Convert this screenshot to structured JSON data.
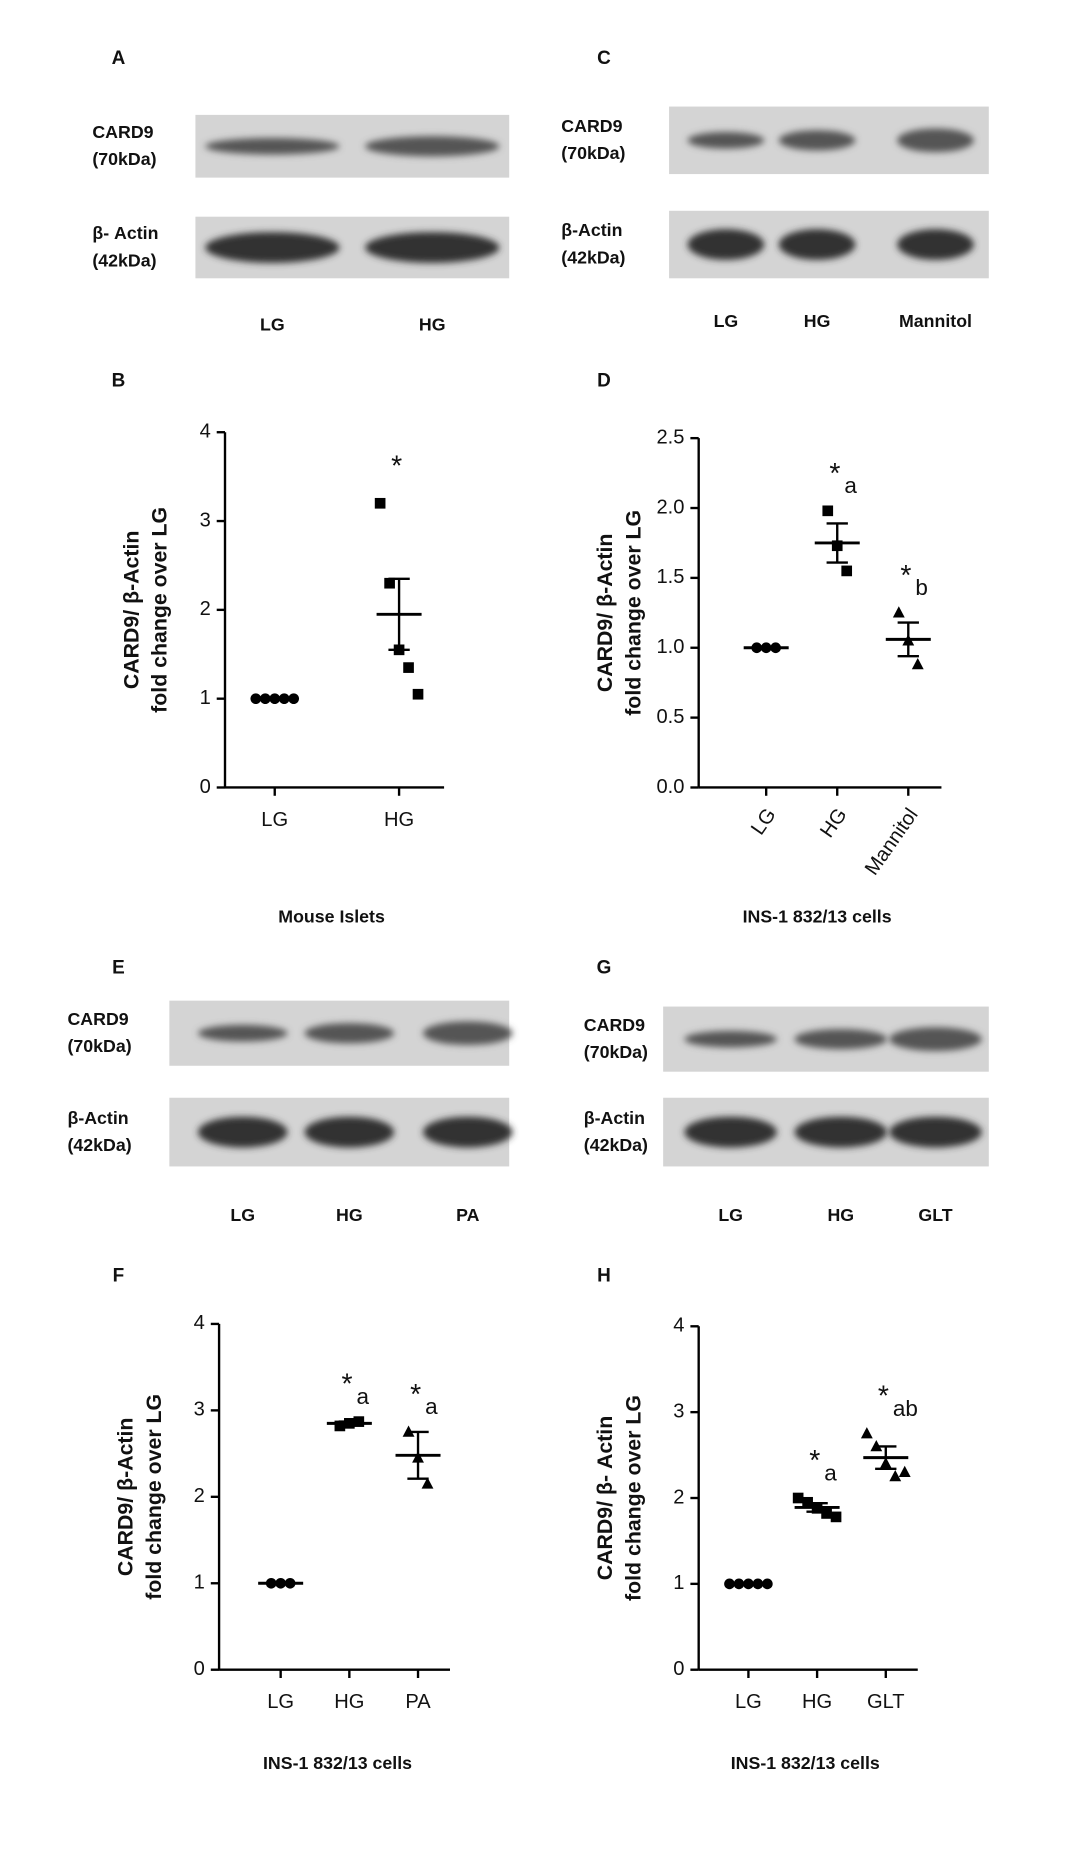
{
  "blots": [
    {
      "panel": "A",
      "rows": [
        {
          "protein": "CARD9",
          "size": "(70kDa)"
        },
        {
          "protein": "β- Actin",
          "size": "(42kDa)"
        }
      ],
      "lanes": [
        "LG",
        "HG"
      ]
    },
    {
      "panel": "C",
      "rows": [
        {
          "protein": "CARD9",
          "size": "(70kDa)"
        },
        {
          "protein": "β-Actin",
          "size": "(42kDa)"
        }
      ],
      "lanes": [
        "LG",
        "HG",
        "Mannitol"
      ]
    },
    {
      "panel": "E",
      "rows": [
        {
          "protein": "CARD9",
          "size": "(70kDa)"
        },
        {
          "protein": "β-Actin",
          "size": "(42kDa)"
        }
      ],
      "lanes": [
        "LG",
        "HG",
        "PA"
      ]
    },
    {
      "panel": "G",
      "rows": [
        {
          "protein": "CARD9",
          "size": "(70kDa)"
        },
        {
          "protein": "β-Actin",
          "size": "(42kDa)"
        }
      ],
      "lanes": [
        "LG",
        "HG",
        "GLT"
      ]
    }
  ],
  "chart_data": [
    {
      "type": "dot",
      "panel": "B",
      "ylabel": [
        "CARD9/ β-Actin",
        "fold change over LG"
      ],
      "caption": "Mouse Islets",
      "categories": [
        "LG",
        "HG"
      ],
      "markers": [
        "circle",
        "square"
      ],
      "points": [
        [
          1,
          1,
          1,
          1,
          1
        ],
        [
          3.2,
          2.3,
          1.55,
          1.35,
          1.05
        ]
      ],
      "means": [
        1,
        1.95
      ],
      "sems": [
        0,
        0.4
      ],
      "annotations": [
        null,
        {
          "text": "*"
        }
      ],
      "ylim": [
        0,
        4
      ],
      "yticks": [
        0,
        1,
        2,
        3,
        4
      ]
    },
    {
      "type": "dot",
      "panel": "D",
      "ylabel": [
        "CARD9/ β-Actin",
        "fold change over LG"
      ],
      "caption": "INS-1 832/13 cells",
      "categories": [
        "LG",
        "HG",
        "Mannitol"
      ],
      "markers": [
        "circle",
        "square",
        "triangle"
      ],
      "points": [
        [
          1,
          1,
          1
        ],
        [
          1.98,
          1.73,
          1.55
        ],
        [
          1.25,
          1.05,
          0.88
        ]
      ],
      "means": [
        1,
        1.75,
        1.06
      ],
      "sems": [
        0,
        0.14,
        0.12
      ],
      "annotations": [
        null,
        {
          "text": "*",
          "sub": "a"
        },
        {
          "text": "*",
          "sub": "b"
        }
      ],
      "ylim": [
        0,
        2.5
      ],
      "yticks": [
        {
          "value": 0,
          "label": "0.0"
        },
        0.5,
        {
          "value": 1,
          "label": "1.0"
        },
        1.5,
        {
          "value": 2,
          "label": "2.0"
        },
        2.5
      ]
    },
    {
      "type": "dot",
      "panel": "F",
      "ylabel": [
        "CARD9/ β-Actin",
        "fold change over LG"
      ],
      "caption": "INS-1 832/13 cells",
      "categories": [
        "LG",
        "HG",
        "PA"
      ],
      "markers": [
        "circle",
        "square",
        "triangle"
      ],
      "points": [
        [
          1,
          1,
          1
        ],
        [
          2.82,
          2.85,
          2.87
        ],
        [
          2.75,
          2.45,
          2.15
        ]
      ],
      "means": [
        1,
        2.85,
        2.48
      ],
      "sems": [
        0,
        0.02,
        0.27
      ],
      "annotations": [
        null,
        {
          "text": "*",
          "sub": "a"
        },
        {
          "text": "*",
          "sub": "a"
        }
      ],
      "ylim": [
        0,
        4
      ],
      "yticks": [
        0,
        1,
        2,
        3,
        4
      ]
    },
    {
      "type": "dot",
      "panel": "H",
      "ylabel": [
        "CARD9/ β- Actin",
        "fold change over LG"
      ],
      "caption": "INS-1 832/13 cells",
      "categories": [
        "LG",
        "HG",
        "GLT"
      ],
      "markers": [
        "circle",
        "square",
        "triangle"
      ],
      "points": [
        [
          1,
          1,
          1,
          1,
          1
        ],
        [
          2.0,
          1.95,
          1.88,
          1.82,
          1.78
        ],
        [
          2.75,
          2.6,
          2.4,
          2.25,
          2.3
        ]
      ],
      "means": [
        1,
        1.89,
        2.47
      ],
      "sems": [
        0,
        0.05,
        0.13
      ],
      "annotations": [
        null,
        {
          "text": "*",
          "sub": "a"
        },
        {
          "text": "*",
          "sub": "ab"
        }
      ],
      "ylim": [
        0,
        4
      ],
      "yticks": [
        0,
        1,
        2,
        3,
        4
      ]
    }
  ]
}
